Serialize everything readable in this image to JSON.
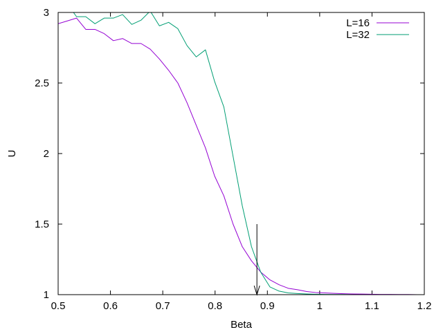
{
  "chart_data": {
    "type": "line",
    "xlabel": "Beta",
    "ylabel": "U",
    "xlim": [
      0.5,
      1.2
    ],
    "ylim": [
      1,
      3
    ],
    "xticks": [
      0.5,
      0.6,
      0.7,
      0.8,
      0.9,
      1.0,
      1.1,
      1.2
    ],
    "xtick_labels": [
      "0.5",
      "0.6",
      "0.7",
      "0.8",
      "0.9",
      "1",
      "1.1",
      "1.2"
    ],
    "yticks": [
      1,
      1.5,
      2,
      2.5,
      3
    ],
    "ytick_labels": [
      "1",
      "1.5",
      "2",
      "2.5",
      "3"
    ],
    "grid": false,
    "legend_position": "top-right",
    "series": [
      {
        "name": "L=16",
        "color": "#9400d3",
        "x": [
          0.5,
          0.5176,
          0.5352,
          0.5528,
          0.5704,
          0.588,
          0.6056,
          0.6232,
          0.6408,
          0.6584,
          0.676,
          0.6936,
          0.7112,
          0.7288,
          0.7464,
          0.764,
          0.7816,
          0.7992,
          0.8168,
          0.8344,
          0.852,
          0.8696,
          0.8872,
          0.9048,
          0.9224,
          0.94,
          0.9576,
          0.9752,
          0.9928,
          1.0104,
          1.028,
          1.0456,
          1.0632,
          1.0808,
          1.0984,
          1.116,
          1.1336,
          1.1512,
          1.1688,
          1.1864
        ],
        "y": [
          2.92,
          2.94,
          2.96,
          2.88,
          2.88,
          2.85,
          2.8,
          2.815,
          2.78,
          2.78,
          2.74,
          2.67,
          2.59,
          2.5,
          2.36,
          2.2,
          2.04,
          1.84,
          1.7,
          1.5,
          1.34,
          1.24,
          1.16,
          1.105,
          1.07,
          1.045,
          1.035,
          1.022,
          1.015,
          1.012,
          1.009,
          1.007,
          1.005,
          1.004,
          1.003,
          1.002,
          1.002,
          1.001,
          1.001,
          1.0
        ],
        "line_width": 1
      },
      {
        "name": "L=32",
        "color": "#009e73",
        "x": [
          0.5,
          0.5176,
          0.5352,
          0.5528,
          0.5704,
          0.588,
          0.6056,
          0.6232,
          0.6408,
          0.6584,
          0.676,
          0.6936,
          0.7112,
          0.7288,
          0.7464,
          0.764,
          0.7816,
          0.7992,
          0.8168,
          0.8344,
          0.852,
          0.8696,
          0.8872,
          0.9048,
          0.9224,
          0.94,
          0.9576,
          0.9752,
          0.9928,
          1.0104,
          1.028,
          1.0456,
          1.0632,
          1.0808,
          1.0984,
          1.116,
          1.1336,
          1.1512,
          1.1688,
          1.1864
        ],
        "y": [
          3.08,
          3.06,
          2.97,
          2.97,
          2.92,
          2.96,
          2.96,
          2.985,
          2.915,
          2.945,
          3.01,
          2.905,
          2.93,
          2.885,
          2.765,
          2.685,
          2.735,
          2.51,
          2.33,
          1.98,
          1.63,
          1.34,
          1.16,
          1.055,
          1.025,
          1.012,
          1.008,
          1.005,
          1.003,
          1.002,
          1.001,
          1.001,
          1.0,
          1.0,
          1.0,
          1.0,
          1.0,
          1.0,
          1.0,
          1.0
        ],
        "line_width": 1
      }
    ],
    "annotations": [
      {
        "type": "arrow",
        "x": 0.88,
        "y_from": 1.5,
        "y_to": 1.0
      }
    ]
  }
}
